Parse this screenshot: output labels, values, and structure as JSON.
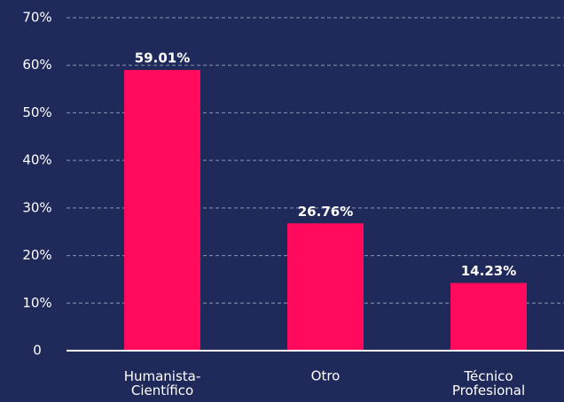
{
  "chart_data": {
    "type": "bar",
    "categories": [
      "Humanista-\nCientífico",
      "Otro",
      "Técnico\nProfesional"
    ],
    "values": [
      59.01,
      26.76,
      14.23
    ],
    "value_labels": [
      "59.01%",
      "26.76%",
      "14.23%"
    ],
    "color": "#ff0a5c",
    "ylim": [
      0,
      70
    ],
    "yticks": [
      0,
      {
        "value": 10,
        "label": "10%"
      },
      {
        "value": 20,
        "label": "20%"
      },
      {
        "value": 30,
        "label": "30%"
      },
      {
        "value": 40,
        "label": "40%"
      },
      {
        "value": 50,
        "label": "50%"
      },
      {
        "value": 60,
        "label": "60%"
      },
      {
        "value": 70,
        "label": "70%"
      }
    ],
    "grid": true
  }
}
